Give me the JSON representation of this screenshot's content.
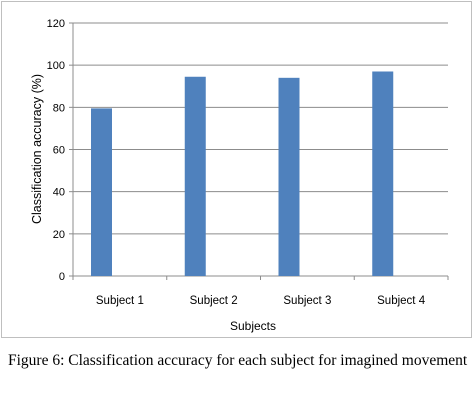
{
  "chart_data": {
    "type": "bar",
    "categories": [
      "Subject 1",
      "Subject 2",
      "Subject 3",
      "Subject 4"
    ],
    "values": [
      79.5,
      94.5,
      94,
      97
    ],
    "xlabel": "Subjects",
    "ylabel": "Classification accuracy (%)",
    "ylim": [
      0,
      120
    ],
    "yticks": [
      0,
      20,
      40,
      60,
      80,
      100,
      120
    ],
    "grid": "horizontal",
    "bar_color": "#4f81bd"
  },
  "caption": "Figure 6: Classification accuracy for each subject for imagined movement"
}
